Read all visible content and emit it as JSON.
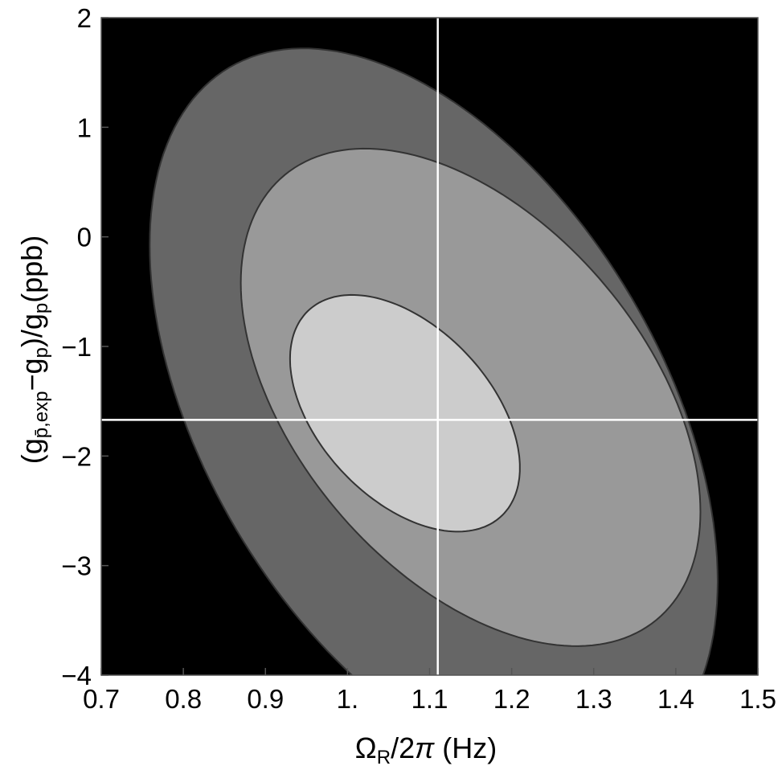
{
  "chart_data": {
    "type": "contour",
    "xlabel": {
      "prefix": "Ω",
      "sub": "R",
      "suffix_a": "/2",
      "pi": "π",
      "suffix_b": " (Hz)"
    },
    "ylabel": {
      "open": "(g",
      "sub1": "p̄,exp",
      "mid": "−g",
      "sub2": "p",
      "mid2": ")/g",
      "sub3": "p",
      "close": "(ppb)"
    },
    "xlim": [
      0.7,
      1.5
    ],
    "ylim": [
      -4,
      2
    ],
    "xticks": [
      {
        "v": 0.7,
        "label": "0.7"
      },
      {
        "v": 0.8,
        "label": "0.8"
      },
      {
        "v": 0.9,
        "label": "0.9"
      },
      {
        "v": 1.0,
        "label": "1."
      },
      {
        "v": 1.1,
        "label": "1.1"
      },
      {
        "v": 1.2,
        "label": "1.2"
      },
      {
        "v": 1.3,
        "label": "1.3"
      },
      {
        "v": 1.4,
        "label": "1.4"
      },
      {
        "v": 1.5,
        "label": "1.5"
      }
    ],
    "yticks": [
      {
        "v": 2,
        "label": "2"
      },
      {
        "v": 1,
        "label": "1"
      },
      {
        "v": 0,
        "label": "0"
      },
      {
        "v": -1,
        "label": "−1"
      },
      {
        "v": -2,
        "label": "−2"
      },
      {
        "v": -3,
        "label": "−3"
      },
      {
        "v": -4,
        "label": "−4"
      }
    ],
    "best_fit": {
      "x": 1.11,
      "y": -1.67
    },
    "background_color": "#000000",
    "contours": [
      {
        "level": 3,
        "color": "#666666",
        "cx": 1.105,
        "cy": -1.61,
        "a": 0.346,
        "b": 3.33,
        "rho": 0.46
      },
      {
        "level": 2,
        "color": "#999999",
        "cx": 1.15,
        "cy": -1.465,
        "a": 0.28,
        "b": 2.27,
        "rho": 0.46
      },
      {
        "level": 1,
        "color": "#cccccc",
        "cx": 1.07,
        "cy": -1.61,
        "a": 0.14,
        "b": 1.08,
        "rho": 0.46
      }
    ],
    "crosshair_color": "#ffffff",
    "contour_line_color": "#333333"
  }
}
